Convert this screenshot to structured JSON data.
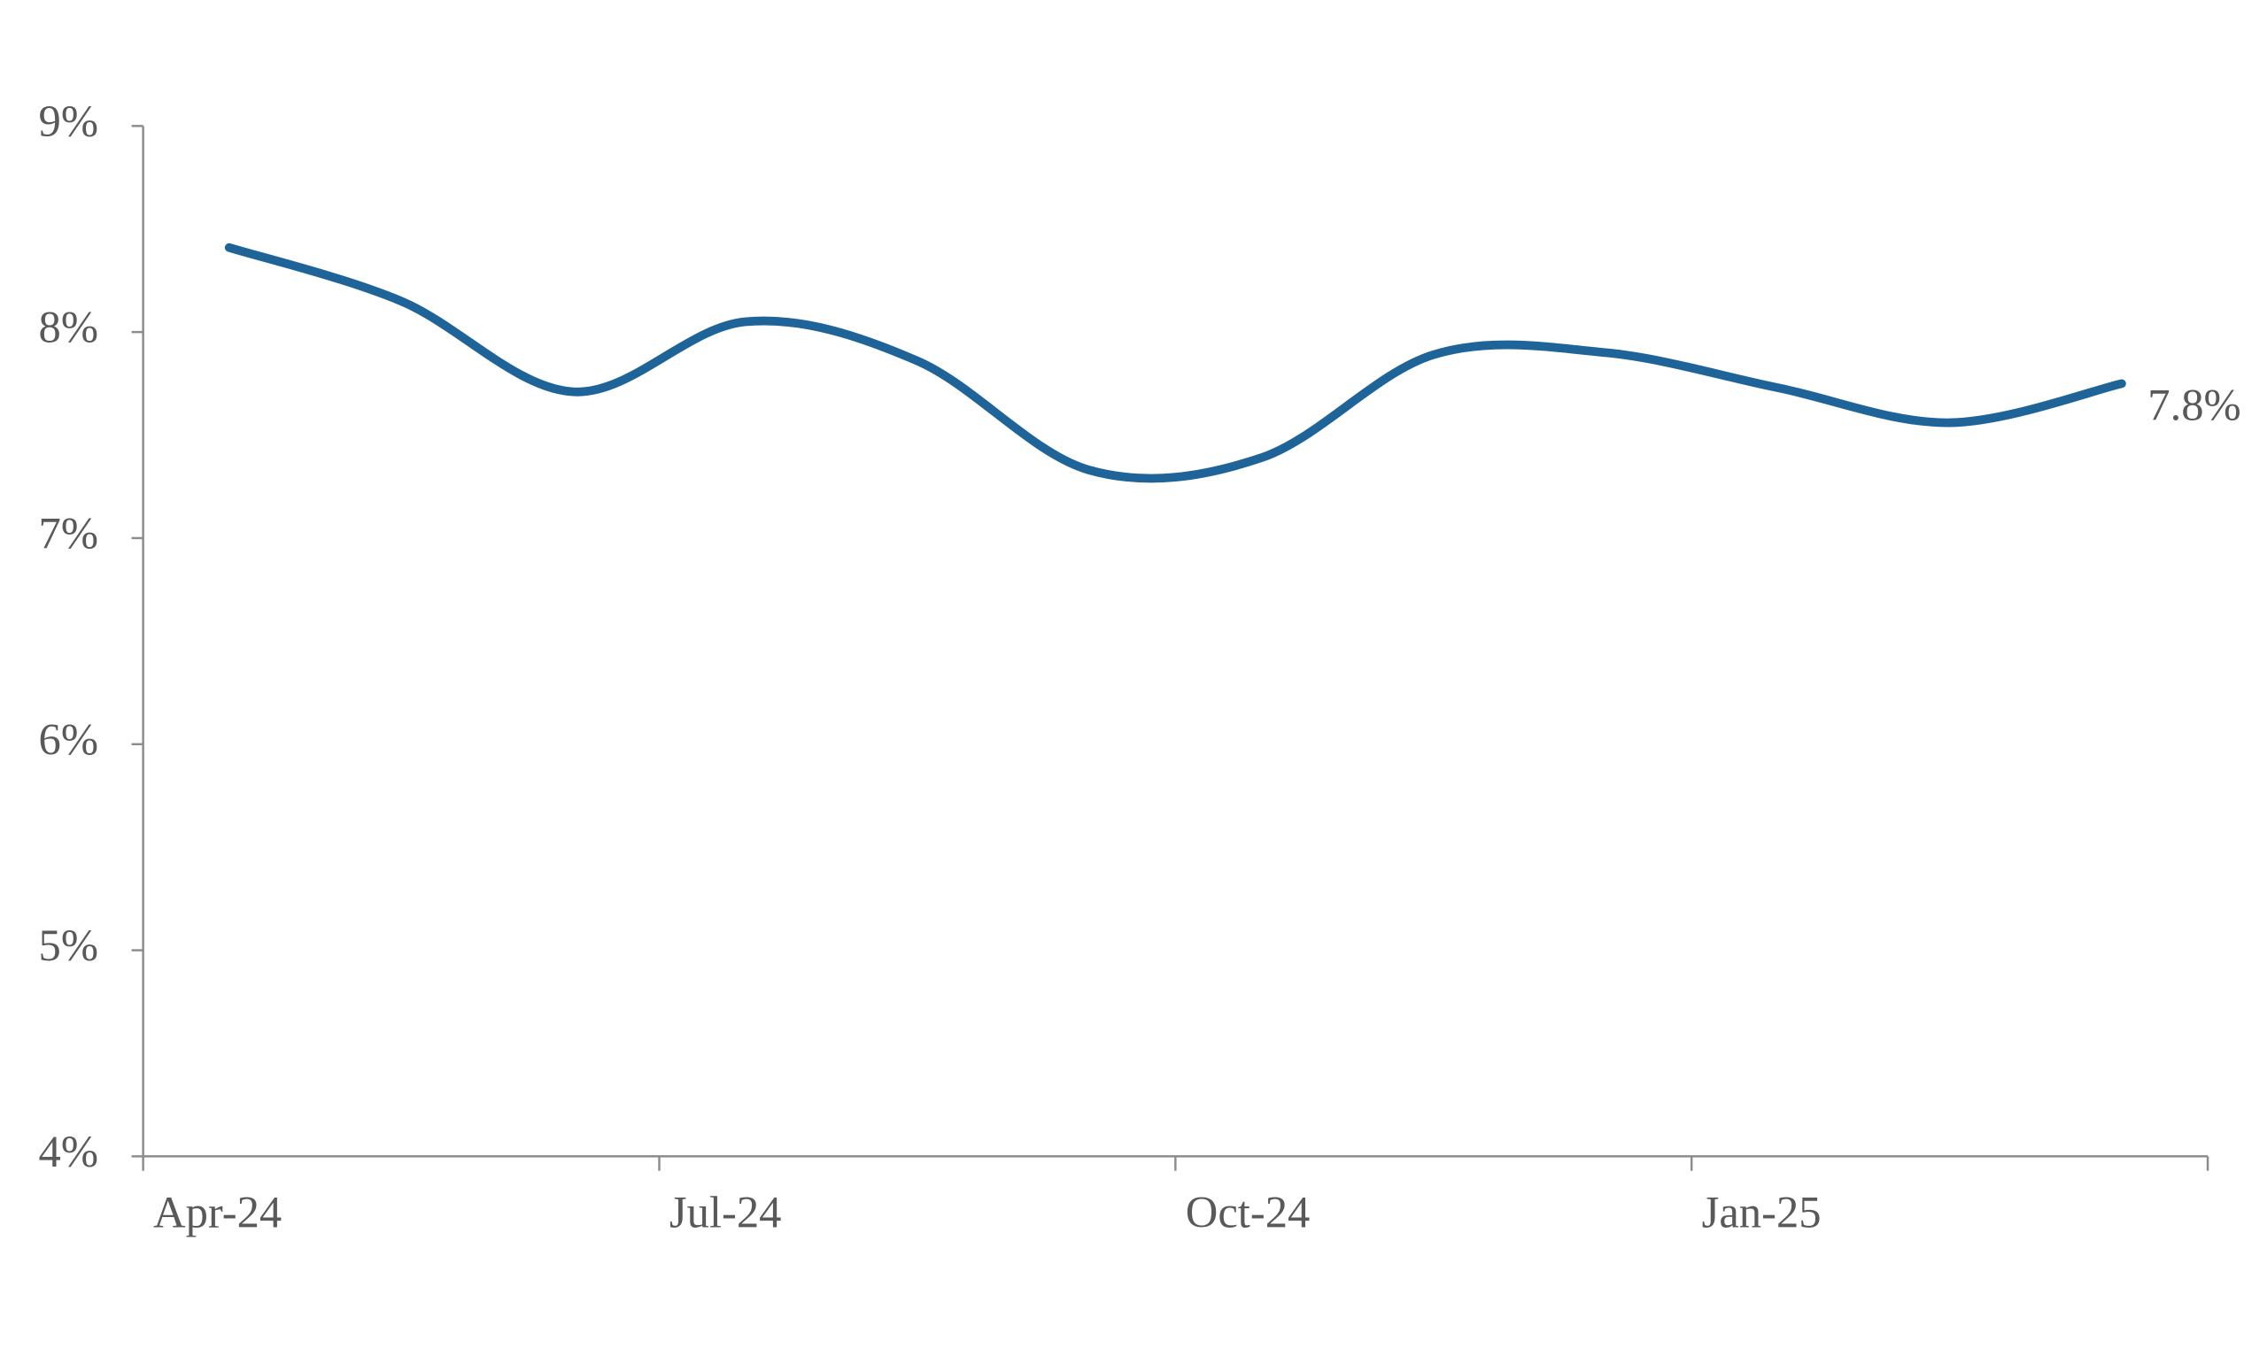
{
  "chart_data": {
    "type": "line",
    "categories": [
      "Apr-24",
      null,
      null,
      "Jul-24",
      null,
      null,
      "Oct-24",
      null,
      null,
      "Jan-25",
      null,
      null
    ],
    "series": [
      {
        "color": "#1f6499",
        "values": [
          8.41,
          8.15,
          7.71,
          8.05,
          7.86,
          7.33,
          7.39,
          7.89,
          7.9,
          7.73,
          7.56,
          7.75
        ],
        "value_labels": [
          null,
          null,
          null,
          null,
          null,
          null,
          null,
          null,
          null,
          null,
          null,
          "7.8%"
        ]
      }
    ],
    "ylim": [
      4,
      9
    ],
    "yticks": [
      {
        "value": 4,
        "label": "4%"
      },
      {
        "value": 5,
        "label": "5%"
      },
      {
        "value": 6,
        "label": "6%"
      },
      {
        "value": 7,
        "label": "7%"
      },
      {
        "value": 8,
        "label": "8%"
      },
      {
        "value": 9,
        "label": "9%"
      }
    ]
  }
}
